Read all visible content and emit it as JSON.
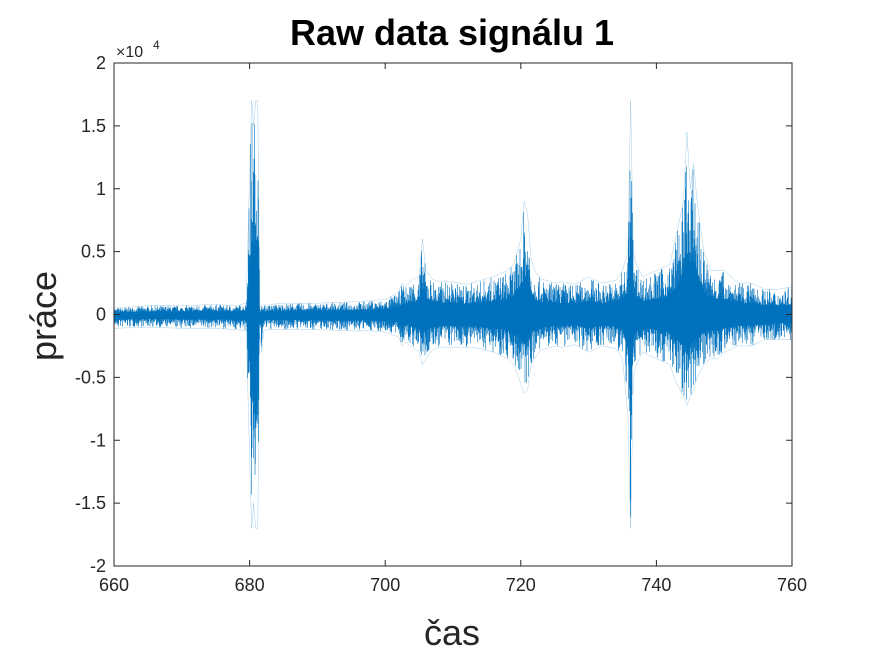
{
  "chart_data": {
    "type": "line",
    "title": "Raw data signálu 1",
    "xlabel": "čas",
    "ylabel": "práce",
    "xlim": [
      660,
      760
    ],
    "ylim": [
      -20000,
      20000
    ],
    "x_ticks": [
      660,
      680,
      700,
      720,
      740,
      760
    ],
    "x_tick_labels": [
      "660",
      "680",
      "700",
      "720",
      "740",
      "760"
    ],
    "y_ticks": [
      -20000,
      -15000,
      -10000,
      -5000,
      0,
      5000,
      10000,
      15000,
      20000
    ],
    "y_tick_labels": [
      "-2",
      "-1.5",
      "-1",
      "-0.5",
      "0",
      "0.5",
      "1",
      "1.5",
      "2"
    ],
    "y_exponent_label": "×10",
    "y_exponent_power": "4",
    "grid": false,
    "line_color": "#0072BD",
    "series": [
      {
        "x": [
          660,
          665,
          670,
          675,
          678,
          679.5,
          680.3,
          680.6,
          680.9,
          681.2,
          681.5,
          681.8,
          682.1,
          682.5,
          683,
          685,
          690,
          695,
          698,
          700,
          701,
          702,
          702.5,
          703,
          704,
          705,
          705.5,
          706,
          707,
          708,
          710,
          712,
          714,
          716,
          718,
          719,
          720,
          720.5,
          721,
          721.5,
          722,
          723,
          724,
          725,
          726,
          728,
          730,
          732,
          734,
          735,
          735.8,
          736.2,
          736.6,
          737,
          738,
          740,
          742,
          743,
          744,
          744.5,
          745,
          745.5,
          746,
          747,
          748,
          749,
          750,
          752,
          754,
          756,
          758,
          760
        ],
        "y_high": [
          500,
          700,
          700,
          800,
          700,
          900,
          17000,
          15000,
          17000,
          17000,
          600,
          700,
          800,
          700,
          800,
          900,
          900,
          1000,
          1100,
          1200,
          1500,
          1800,
          2500,
          2200,
          2800,
          3000,
          6000,
          3500,
          2800,
          2600,
          2600,
          2400,
          2700,
          3000,
          3500,
          4000,
          6000,
          9000,
          8000,
          4500,
          3500,
          2800,
          2700,
          2500,
          2600,
          2400,
          3000,
          2500,
          2700,
          3500,
          5000,
          17000,
          5000,
          4000,
          3000,
          3500,
          4000,
          6500,
          9000,
          14500,
          10000,
          12000,
          9000,
          5000,
          3500,
          3500,
          3500,
          2500,
          2500,
          2000,
          2000,
          2200
        ],
        "y_low": [
          -1100,
          -1000,
          -1100,
          -1100,
          -1200,
          -1300,
          -17000,
          -15000,
          -17000,
          -17000,
          -1500,
          -3000,
          -1300,
          -1200,
          -1200,
          -1200,
          -1200,
          -1300,
          -1300,
          -1400,
          -1600,
          -1800,
          -2500,
          -2200,
          -2600,
          -3000,
          -4000,
          -3500,
          -2800,
          -2600,
          -2600,
          -2600,
          -2700,
          -3000,
          -3500,
          -4000,
          -5500,
          -6300,
          -6000,
          -4000,
          -3500,
          -2800,
          -2700,
          -2500,
          -2600,
          -2400,
          -3000,
          -2500,
          -2700,
          -3500,
          -8000,
          -17000,
          -5000,
          -4000,
          -3000,
          -3500,
          -4000,
          -5500,
          -6500,
          -7200,
          -6500,
          -6000,
          -5000,
          -4000,
          -3500,
          -3500,
          -3000,
          -2500,
          -2500,
          -2000,
          -2000,
          -2000
        ]
      }
    ]
  }
}
